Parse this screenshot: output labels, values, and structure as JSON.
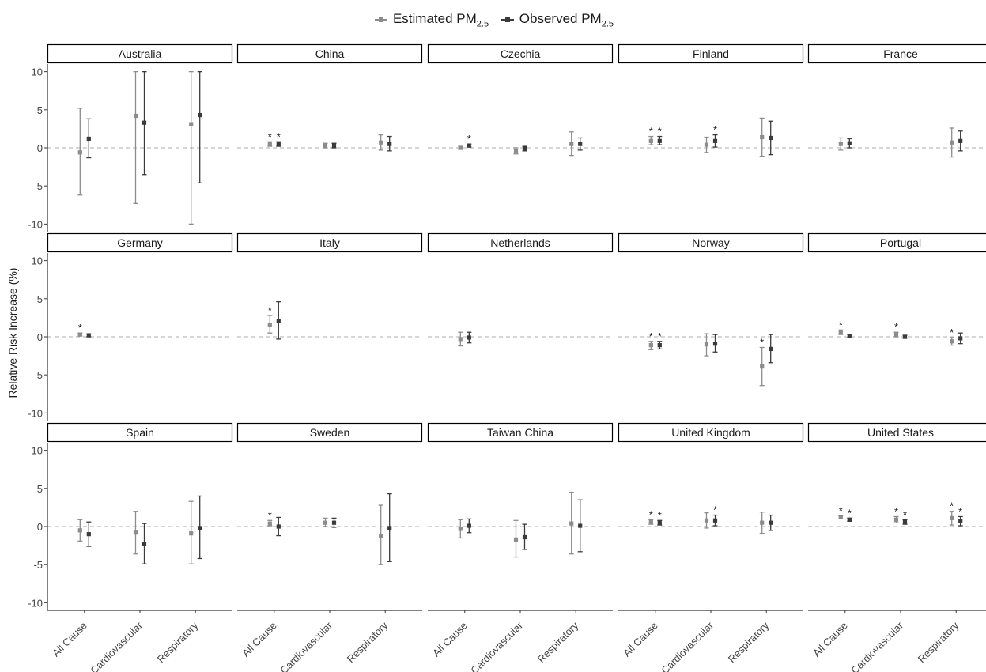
{
  "legend": {
    "estimated_main": "Estimated PM",
    "estimated_sub": "2.5",
    "observed_main": "Observed PM",
    "observed_sub": "2.5"
  },
  "colors": {
    "estimated": "#8c8c8c",
    "observed": "#3a3a3a",
    "zero_line": "#bdbdbd",
    "strip_border": "#000000"
  },
  "chart_data": {
    "type": "errorbar",
    "ylabel": "Relative Risk Increase (%)",
    "ylim": [
      -11,
      11
    ],
    "yticks": [
      -10,
      -5,
      0,
      5,
      10
    ],
    "categories": [
      "All Cause",
      "Cardiovascular",
      "Respiratory"
    ],
    "series": [
      {
        "name": "Estimated PM2.5",
        "key": "est"
      },
      {
        "name": "Observed PM2.5",
        "key": "obs"
      }
    ],
    "significance_marker": "*",
    "panels": [
      {
        "name": "Australia",
        "points": [
          {
            "category": "All Cause",
            "series": "est",
            "y": -0.6,
            "lo": -6.2,
            "hi": 5.2
          },
          {
            "category": "All Cause",
            "series": "obs",
            "y": 1.2,
            "lo": -1.3,
            "hi": 3.8
          },
          {
            "category": "Cardiovascular",
            "series": "est",
            "y": 4.2,
            "lo": -7.3,
            "hi": 10.0
          },
          {
            "category": "Cardiovascular",
            "series": "obs",
            "y": 3.3,
            "lo": -3.5,
            "hi": 10.0
          },
          {
            "category": "Respiratory",
            "series": "est",
            "y": 3.1,
            "lo": -10.0,
            "hi": 10.0
          },
          {
            "category": "Respiratory",
            "series": "obs",
            "y": 4.3,
            "lo": -4.6,
            "hi": 10.0
          }
        ]
      },
      {
        "name": "China",
        "points": [
          {
            "category": "All Cause",
            "series": "est",
            "y": 0.5,
            "lo": 0.2,
            "hi": 0.8,
            "sig": true
          },
          {
            "category": "All Cause",
            "series": "obs",
            "y": 0.5,
            "lo": 0.2,
            "hi": 0.8,
            "sig": true
          },
          {
            "category": "Cardiovascular",
            "series": "est",
            "y": 0.3,
            "lo": 0.0,
            "hi": 0.6
          },
          {
            "category": "Cardiovascular",
            "series": "obs",
            "y": 0.3,
            "lo": 0.0,
            "hi": 0.6
          },
          {
            "category": "Respiratory",
            "series": "est",
            "y": 0.7,
            "lo": -0.3,
            "hi": 1.7
          },
          {
            "category": "Respiratory",
            "series": "obs",
            "y": 0.5,
            "lo": -0.4,
            "hi": 1.5
          }
        ]
      },
      {
        "name": "Czechia",
        "points": [
          {
            "category": "All Cause",
            "series": "est",
            "y": 0.0,
            "lo": -0.2,
            "hi": 0.2
          },
          {
            "category": "All Cause",
            "series": "obs",
            "y": 0.3,
            "lo": 0.1,
            "hi": 0.5,
            "sig": true
          },
          {
            "category": "Cardiovascular",
            "series": "est",
            "y": -0.4,
            "lo": -0.8,
            "hi": 0.0
          },
          {
            "category": "Cardiovascular",
            "series": "obs",
            "y": -0.1,
            "lo": -0.4,
            "hi": 0.2
          },
          {
            "category": "Respiratory",
            "series": "est",
            "y": 0.5,
            "lo": -1.0,
            "hi": 2.1
          },
          {
            "category": "Respiratory",
            "series": "obs",
            "y": 0.5,
            "lo": -0.3,
            "hi": 1.3
          }
        ]
      },
      {
        "name": "Finland",
        "points": [
          {
            "category": "All Cause",
            "series": "est",
            "y": 0.9,
            "lo": 0.4,
            "hi": 1.5,
            "sig": true
          },
          {
            "category": "All Cause",
            "series": "obs",
            "y": 0.9,
            "lo": 0.4,
            "hi": 1.5,
            "sig": true
          },
          {
            "category": "Cardiovascular",
            "series": "est",
            "y": 0.4,
            "lo": -0.6,
            "hi": 1.4
          },
          {
            "category": "Cardiovascular",
            "series": "obs",
            "y": 0.9,
            "lo": 0.1,
            "hi": 1.7,
            "sig": true
          },
          {
            "category": "Respiratory",
            "series": "est",
            "y": 1.4,
            "lo": -1.1,
            "hi": 3.9
          },
          {
            "category": "Respiratory",
            "series": "obs",
            "y": 1.3,
            "lo": -0.9,
            "hi": 3.5
          }
        ]
      },
      {
        "name": "France",
        "points": [
          {
            "category": "All Cause",
            "series": "est",
            "y": 0.5,
            "lo": -0.3,
            "hi": 1.3
          },
          {
            "category": "All Cause",
            "series": "obs",
            "y": 0.6,
            "lo": 0.0,
            "hi": 1.2
          },
          {
            "category": "Respiratory",
            "series": "est",
            "y": 0.7,
            "lo": -1.2,
            "hi": 2.6
          },
          {
            "category": "Respiratory",
            "series": "obs",
            "y": 0.9,
            "lo": -0.4,
            "hi": 2.2
          }
        ]
      },
      {
        "name": "Germany",
        "points": [
          {
            "category": "All Cause",
            "series": "est",
            "y": 0.3,
            "lo": 0.1,
            "hi": 0.5,
            "sig": true
          },
          {
            "category": "All Cause",
            "series": "obs",
            "y": 0.2,
            "lo": 0.0,
            "hi": 0.4
          }
        ]
      },
      {
        "name": "Italy",
        "points": [
          {
            "category": "All Cause",
            "series": "est",
            "y": 1.6,
            "lo": 0.5,
            "hi": 2.8,
            "sig": true
          },
          {
            "category": "All Cause",
            "series": "obs",
            "y": 2.1,
            "lo": -0.3,
            "hi": 4.6
          }
        ]
      },
      {
        "name": "Netherlands",
        "points": [
          {
            "category": "All Cause",
            "series": "est",
            "y": -0.3,
            "lo": -1.2,
            "hi": 0.6
          },
          {
            "category": "All Cause",
            "series": "obs",
            "y": -0.1,
            "lo": -0.8,
            "hi": 0.6
          }
        ]
      },
      {
        "name": "Norway",
        "points": [
          {
            "category": "All Cause",
            "series": "est",
            "y": -1.1,
            "lo": -1.7,
            "hi": -0.6,
            "sig": true
          },
          {
            "category": "All Cause",
            "series": "obs",
            "y": -1.1,
            "lo": -1.6,
            "hi": -0.6,
            "sig": true
          },
          {
            "category": "Cardiovascular",
            "series": "est",
            "y": -1.0,
            "lo": -2.5,
            "hi": 0.4
          },
          {
            "category": "Cardiovascular",
            "series": "obs",
            "y": -0.9,
            "lo": -2.0,
            "hi": 0.3
          },
          {
            "category": "Respiratory",
            "series": "est",
            "y": -3.9,
            "lo": -6.4,
            "hi": -1.4,
            "sig": true
          },
          {
            "category": "Respiratory",
            "series": "obs",
            "y": -1.6,
            "lo": -3.4,
            "hi": 0.3
          }
        ]
      },
      {
        "name": "Portugal",
        "points": [
          {
            "category": "All Cause",
            "series": "est",
            "y": 0.6,
            "lo": 0.3,
            "hi": 0.9,
            "sig": true
          },
          {
            "category": "All Cause",
            "series": "obs",
            "y": 0.1,
            "lo": -0.1,
            "hi": 0.3
          },
          {
            "category": "Cardiovascular",
            "series": "est",
            "y": 0.3,
            "lo": 0.0,
            "hi": 0.6,
            "sig": true
          },
          {
            "category": "Cardiovascular",
            "series": "obs",
            "y": 0.0,
            "lo": -0.2,
            "hi": 0.2
          },
          {
            "category": "Respiratory",
            "series": "est",
            "y": -0.6,
            "lo": -1.1,
            "hi": -0.1,
            "sig": true
          },
          {
            "category": "Respiratory",
            "series": "obs",
            "y": -0.2,
            "lo": -0.9,
            "hi": 0.5
          }
        ]
      },
      {
        "name": "Spain",
        "points": [
          {
            "category": "All Cause",
            "series": "est",
            "y": -0.5,
            "lo": -1.9,
            "hi": 0.9
          },
          {
            "category": "All Cause",
            "series": "obs",
            "y": -1.0,
            "lo": -2.6,
            "hi": 0.6
          },
          {
            "category": "Cardiovascular",
            "series": "est",
            "y": -0.8,
            "lo": -3.6,
            "hi": 2.0
          },
          {
            "category": "Cardiovascular",
            "series": "obs",
            "y": -2.3,
            "lo": -4.9,
            "hi": 0.4
          },
          {
            "category": "Respiratory",
            "series": "est",
            "y": -0.9,
            "lo": -4.9,
            "hi": 3.3
          },
          {
            "category": "Respiratory",
            "series": "obs",
            "y": -0.2,
            "lo": -4.2,
            "hi": 4.0
          }
        ]
      },
      {
        "name": "Sweden",
        "points": [
          {
            "category": "All Cause",
            "series": "est",
            "y": 0.4,
            "lo": 0.1,
            "hi": 0.8,
            "sig": true
          },
          {
            "category": "All Cause",
            "series": "obs",
            "y": 0.0,
            "lo": -1.2,
            "hi": 1.2
          },
          {
            "category": "Cardiovascular",
            "series": "est",
            "y": 0.5,
            "lo": 0.0,
            "hi": 1.1
          },
          {
            "category": "Cardiovascular",
            "series": "obs",
            "y": 0.5,
            "lo": -0.1,
            "hi": 1.1
          },
          {
            "category": "Respiratory",
            "series": "est",
            "y": -1.2,
            "lo": -5.0,
            "hi": 2.8
          },
          {
            "category": "Respiratory",
            "series": "obs",
            "y": -0.2,
            "lo": -4.6,
            "hi": 4.3
          }
        ]
      },
      {
        "name": "Taiwan China",
        "points": [
          {
            "category": "All Cause",
            "series": "est",
            "y": -0.3,
            "lo": -1.5,
            "hi": 0.9
          },
          {
            "category": "All Cause",
            "series": "obs",
            "y": 0.1,
            "lo": -0.8,
            "hi": 1.0
          },
          {
            "category": "Cardiovascular",
            "series": "est",
            "y": -1.7,
            "lo": -4.0,
            "hi": 0.8
          },
          {
            "category": "Cardiovascular",
            "series": "obs",
            "y": -1.4,
            "lo": -3.0,
            "hi": 0.3
          },
          {
            "category": "Respiratory",
            "series": "est",
            "y": 0.4,
            "lo": -3.6,
            "hi": 4.5
          },
          {
            "category": "Respiratory",
            "series": "obs",
            "y": 0.1,
            "lo": -3.3,
            "hi": 3.5
          }
        ]
      },
      {
        "name": "United Kingdom",
        "points": [
          {
            "category": "All Cause",
            "series": "est",
            "y": 0.6,
            "lo": 0.3,
            "hi": 0.9,
            "sig": true
          },
          {
            "category": "All Cause",
            "series": "obs",
            "y": 0.5,
            "lo": 0.2,
            "hi": 0.8,
            "sig": true
          },
          {
            "category": "Cardiovascular",
            "series": "est",
            "y": 0.8,
            "lo": -0.2,
            "hi": 1.8
          },
          {
            "category": "Cardiovascular",
            "series": "obs",
            "y": 0.8,
            "lo": 0.1,
            "hi": 1.5,
            "sig": true
          },
          {
            "category": "Respiratory",
            "series": "est",
            "y": 0.5,
            "lo": -0.9,
            "hi": 1.9
          },
          {
            "category": "Respiratory",
            "series": "obs",
            "y": 0.5,
            "lo": -0.5,
            "hi": 1.5
          }
        ]
      },
      {
        "name": "United States",
        "points": [
          {
            "category": "All Cause",
            "series": "est",
            "y": 1.2,
            "lo": 1.0,
            "hi": 1.4,
            "sig": true
          },
          {
            "category": "All Cause",
            "series": "obs",
            "y": 0.9,
            "lo": 0.7,
            "hi": 1.1,
            "sig": true
          },
          {
            "category": "Cardiovascular",
            "series": "est",
            "y": 0.9,
            "lo": 0.5,
            "hi": 1.3,
            "sig": true
          },
          {
            "category": "Cardiovascular",
            "series": "obs",
            "y": 0.6,
            "lo": 0.3,
            "hi": 0.9,
            "sig": true
          },
          {
            "category": "Respiratory",
            "series": "est",
            "y": 1.1,
            "lo": 0.2,
            "hi": 2.0,
            "sig": true
          },
          {
            "category": "Respiratory",
            "series": "obs",
            "y": 0.7,
            "lo": 0.1,
            "hi": 1.3,
            "sig": true
          }
        ]
      }
    ]
  }
}
